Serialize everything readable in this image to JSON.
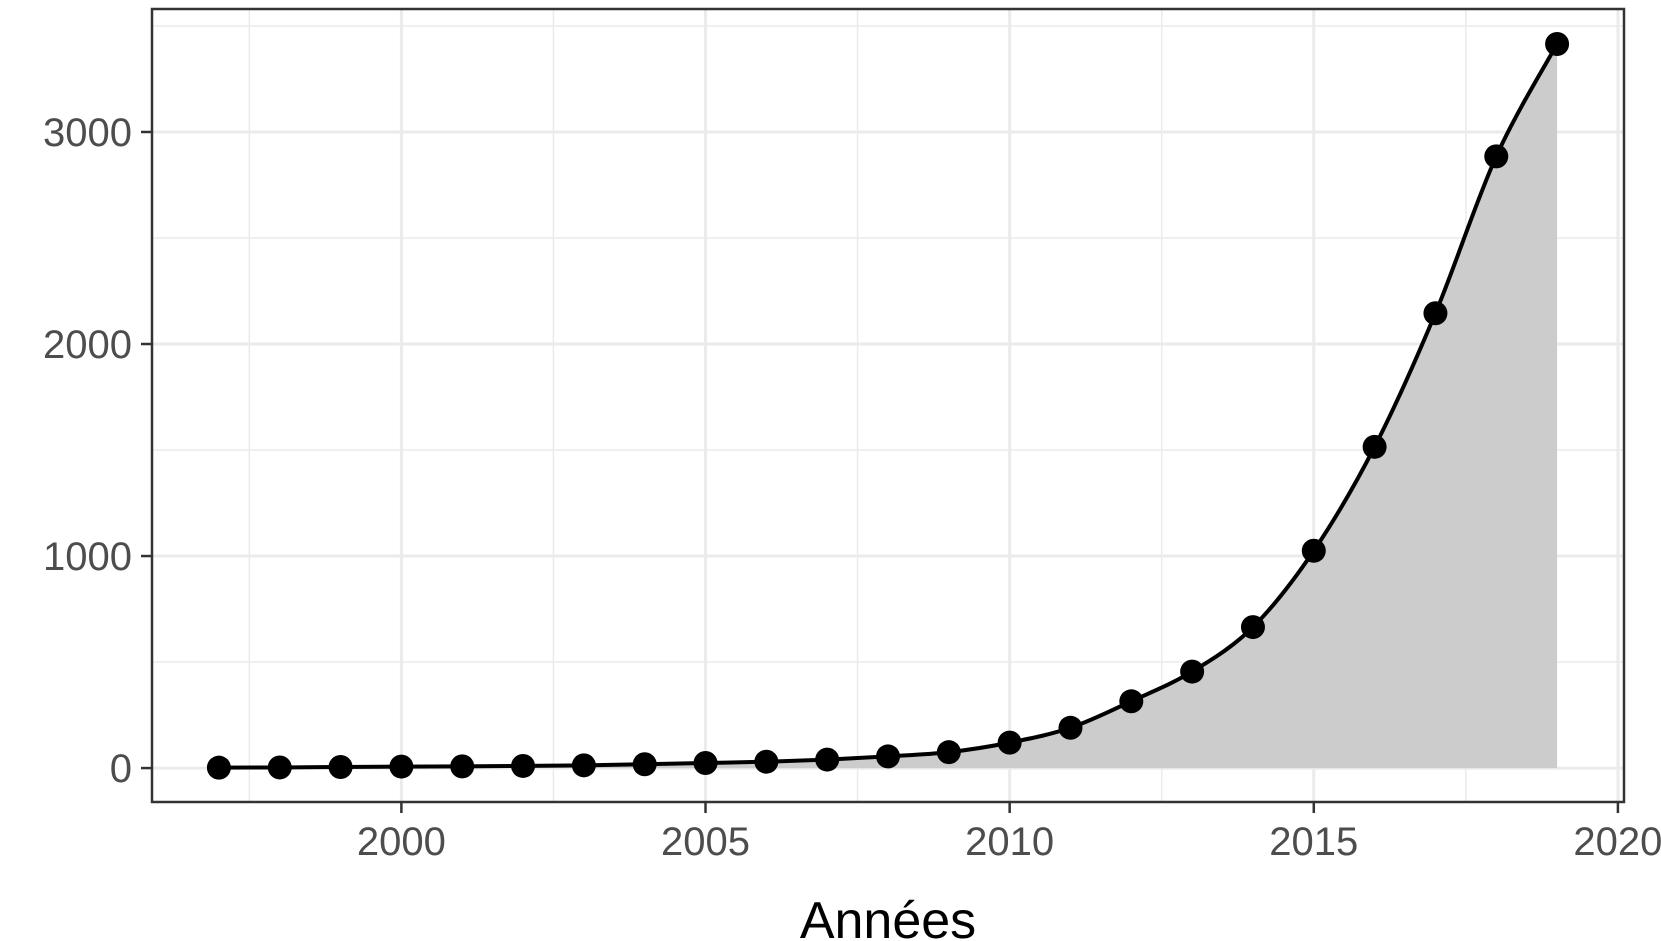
{
  "chart_data": {
    "type": "line",
    "title": "",
    "xlabel": "Années",
    "ylabel": "",
    "x": [
      1997,
      1998,
      1999,
      2000,
      2001,
      2002,
      2003,
      2004,
      2005,
      2006,
      2007,
      2008,
      2009,
      2010,
      2011,
      2012,
      2013,
      2014,
      2015,
      2016,
      2017,
      2018,
      2019
    ],
    "series": [
      {
        "values": [
          2,
          3,
          5,
          7,
          8,
          10,
          13,
          18,
          24,
          30,
          40,
          55,
          75,
          120,
          190,
          315,
          455,
          665,
          1025,
          1515,
          2145,
          2885,
          3415
        ]
      }
    ],
    "area_fill": true,
    "markers": true,
    "xlim": [
      1995.9,
      2020.1
    ],
    "ylim": [
      -160,
      3580
    ],
    "x_ticks": [
      2000,
      2005,
      2010,
      2015,
      2020
    ],
    "x_tick_labels": [
      "2000",
      "2005",
      "2010",
      "2015",
      "2020"
    ],
    "y_ticks": [
      0,
      1000,
      2000,
      3000
    ],
    "y_tick_labels": [
      "0",
      "1000",
      "2000",
      "3000"
    ],
    "grid": true,
    "legend": "none",
    "colors": {
      "line": "#000000",
      "marker": "#000000",
      "area": "#cccccc",
      "grid": "#ebebeb",
      "panel_border": "#333333",
      "tick_label": "#4d4d4d"
    }
  }
}
